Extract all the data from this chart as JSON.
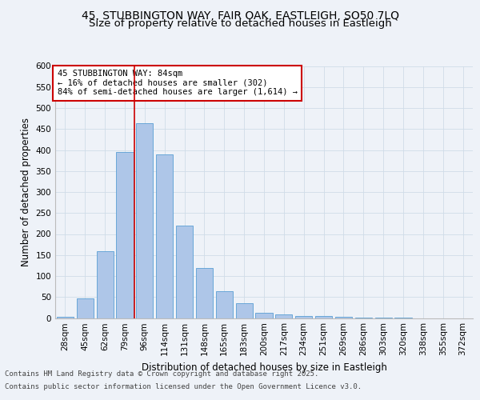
{
  "title_line1": "45, STUBBINGTON WAY, FAIR OAK, EASTLEIGH, SO50 7LQ",
  "title_line2": "Size of property relative to detached houses in Eastleigh",
  "xlabel": "Distribution of detached houses by size in Eastleigh",
  "ylabel": "Number of detached properties",
  "categories": [
    "28sqm",
    "45sqm",
    "62sqm",
    "79sqm",
    "96sqm",
    "114sqm",
    "131sqm",
    "148sqm",
    "165sqm",
    "183sqm",
    "200sqm",
    "217sqm",
    "234sqm",
    "251sqm",
    "269sqm",
    "286sqm",
    "303sqm",
    "320sqm",
    "338sqm",
    "355sqm",
    "372sqm"
  ],
  "values": [
    3,
    46,
    160,
    395,
    463,
    390,
    220,
    120,
    63,
    35,
    12,
    9,
    4,
    5,
    2,
    1,
    1,
    1,
    0,
    0,
    0
  ],
  "bar_color": "#aec6e8",
  "bar_edge_color": "#5a9fd4",
  "grid_color": "#d0dce8",
  "background_color": "#eef2f8",
  "red_line_x": 3.5,
  "annotation_box_text": "45 STUBBINGTON WAY: 84sqm\n← 16% of detached houses are smaller (302)\n84% of semi-detached houses are larger (1,614) →",
  "annotation_box_color": "#ffffff",
  "annotation_box_edge_color": "#cc0000",
  "annotation_text_color": "#000000",
  "red_line_color": "#cc0000",
  "ylim": [
    0,
    600
  ],
  "yticks": [
    0,
    50,
    100,
    150,
    200,
    250,
    300,
    350,
    400,
    450,
    500,
    550,
    600
  ],
  "footer_line1": "Contains HM Land Registry data © Crown copyright and database right 2025.",
  "footer_line2": "Contains public sector information licensed under the Open Government Licence v3.0.",
  "title_fontsize": 10,
  "subtitle_fontsize": 9.5,
  "axis_label_fontsize": 8.5,
  "tick_fontsize": 7.5,
  "annotation_fontsize": 7.5,
  "footer_fontsize": 6.5
}
